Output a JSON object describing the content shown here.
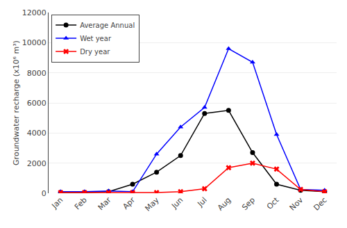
{
  "chart_data": {
    "type": "line",
    "ylabel": "Groundwater recharge (x10⁶ m³)",
    "categories": [
      "Jan",
      "Feb",
      "Mar",
      "Apr",
      "May",
      "Jun",
      "Jul",
      "Aug",
      "Sep",
      "Oct",
      "Nov",
      "Dec"
    ],
    "series": [
      {
        "name": "Average Annual",
        "color": "#000000",
        "marker": "circle",
        "values": [
          50,
          50,
          100,
          600,
          1400,
          2500,
          5300,
          5500,
          2700,
          600,
          200,
          100
        ]
      },
      {
        "name": "Wet year",
        "color": "#0000ff",
        "marker": "triangle-up",
        "values": [
          100,
          100,
          150,
          100,
          2600,
          4400,
          5700,
          9600,
          8700,
          3900,
          250,
          200
        ]
      },
      {
        "name": "Dry year",
        "color": "#ff0000",
        "marker": "x",
        "values": [
          50,
          50,
          50,
          50,
          50,
          100,
          300,
          1700,
          2000,
          1600,
          250,
          100
        ]
      }
    ],
    "ylim": [
      0,
      12000
    ],
    "yticks": [
      0,
      2000,
      4000,
      6000,
      8000,
      10000,
      12000
    ],
    "grid": true,
    "legend": "upper left"
  }
}
